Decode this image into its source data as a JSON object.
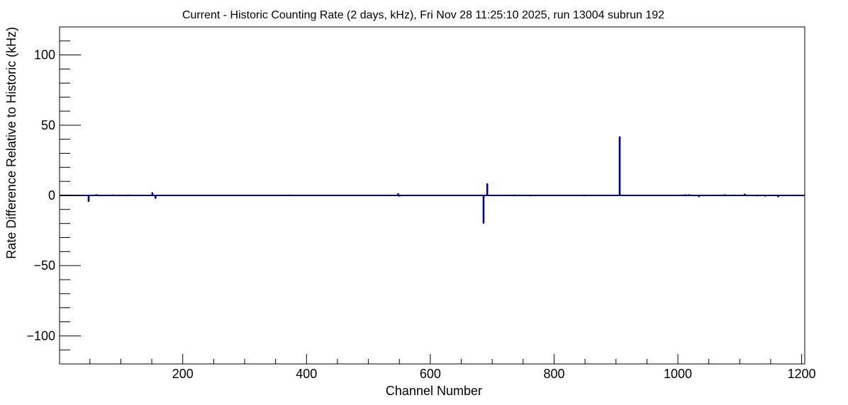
{
  "chart_data": {
    "type": "bar",
    "title": "Current - Historic Counting Rate (2 days, kHz), Fri Nov 28 11:25:10 2025, run 13004 subrun 192",
    "xlabel": "Channel Number",
    "ylabel": "Rate Difference Relative to Historic (kHz)",
    "xlim": [
      1,
      1205
    ],
    "ylim": [
      -120,
      120
    ],
    "x_ticks": [
      200,
      400,
      600,
      800,
      1000,
      1200
    ],
    "y_ticks": [
      -100,
      -50,
      0,
      50,
      100
    ],
    "y_tick_labels": [
      "−100",
      "−50",
      "0",
      "50",
      "100"
    ],
    "grid": false,
    "color": "#000080",
    "series": [
      {
        "x": [
          48,
          60,
          87,
          112,
          151,
          156,
          253,
          372,
          456,
          548,
          550,
          633,
          658,
          686,
          692,
          736,
          762,
          780,
          816,
          849,
          906,
          1012,
          1018,
          1034,
          1076,
          1091,
          1108,
          1128,
          1141,
          1162
        ],
        "values": [
          -4.5,
          0.8,
          0.6,
          0.6,
          2.2,
          -2.3,
          0.5,
          0.6,
          0.5,
          1.5,
          -0.8,
          0.5,
          0.5,
          -20,
          8.5,
          0.6,
          -0.6,
          0.5,
          0.5,
          -0.6,
          42,
          0.8,
          0.8,
          -1.2,
          0.8,
          0.6,
          1.2,
          -0.6,
          -0.8,
          -1.2
        ]
      }
    ]
  }
}
